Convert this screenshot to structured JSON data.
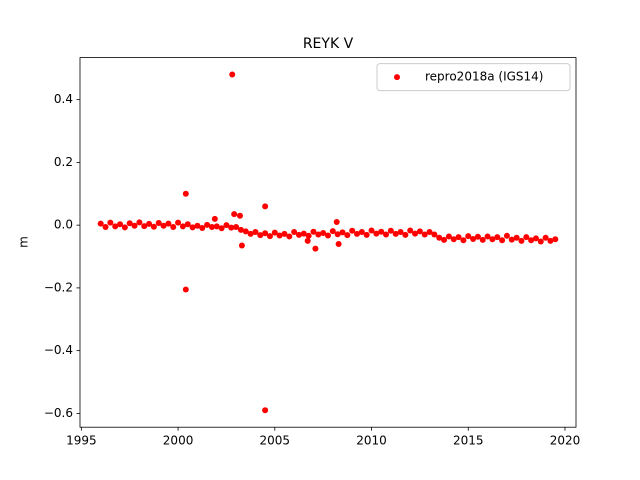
{
  "chart_data": {
    "type": "scatter",
    "title": "REYK V",
    "ylabel": "m",
    "xlim": [
      1994.93,
      2020.57
    ],
    "ylim": [
      -0.644,
      0.534
    ],
    "xticks": [
      1995,
      2000,
      2005,
      2010,
      2015,
      2020
    ],
    "yticks": [
      {
        "value": -0.6,
        "label": "−0.6"
      },
      {
        "value": -0.4,
        "label": "−0.4"
      },
      {
        "value": -0.2,
        "label": "−0.2"
      },
      {
        "value": 0,
        "label": "0.0"
      },
      0.2,
      0.4
    ],
    "legend": "upper right",
    "series": [
      {
        "name": "repro2018a (IGS14)",
        "color": "#ff0000",
        "x": [
          1996.0,
          1996.25,
          1996.5,
          1996.75,
          1997.0,
          1997.25,
          1997.5,
          1997.75,
          1998.0,
          1998.25,
          1998.5,
          1998.75,
          1999.0,
          1999.25,
          1999.5,
          1999.75,
          2000.0,
          2000.25,
          2000.5,
          2000.75,
          2001.0,
          2001.25,
          2001.5,
          2001.75,
          2002.0,
          2002.25,
          2002.5,
          2002.75,
          2003.0,
          2003.25,
          2003.5,
          2003.75,
          2004.0,
          2004.25,
          2004.5,
          2004.75,
          2005.0,
          2005.25,
          2005.5,
          2005.75,
          2006.0,
          2006.25,
          2006.5,
          2006.75,
          2007.0,
          2007.25,
          2007.5,
          2007.75,
          2008.0,
          2008.25,
          2008.5,
          2008.75,
          2009.0,
          2009.25,
          2009.5,
          2009.75,
          2010.0,
          2010.25,
          2010.5,
          2010.75,
          2011.0,
          2011.25,
          2011.5,
          2011.75,
          2012.0,
          2012.25,
          2012.5,
          2012.75,
          2013.0,
          2013.25,
          2013.5,
          2013.75,
          2014.0,
          2014.25,
          2014.5,
          2014.75,
          2015.0,
          2015.25,
          2015.5,
          2015.75,
          2016.0,
          2016.25,
          2016.5,
          2016.75,
          2017.0,
          2017.25,
          2017.5,
          2017.75,
          2018.0,
          2018.25,
          2018.5,
          2018.75,
          2019.0,
          2019.25,
          2019.5,
          2002.8,
          2000.4,
          2000.4,
          2004.5,
          2004.5,
          2002.9,
          2003.2,
          2003.3,
          2006.7,
          2007.1,
          2008.2,
          2008.3,
          2001.9
        ],
        "values": [
          0.005,
          -0.006,
          0.008,
          -0.004,
          0.003,
          -0.007,
          0.006,
          -0.002,
          0.009,
          -0.003,
          0.004,
          -0.005,
          0.007,
          -0.002,
          0.005,
          -0.006,
          0.008,
          -0.004,
          0.003,
          -0.007,
          -0.002,
          -0.009,
          0.001,
          -0.006,
          -0.004,
          -0.01,
          0.0,
          -0.008,
          -0.006,
          -0.015,
          -0.02,
          -0.028,
          -0.022,
          -0.032,
          -0.026,
          -0.035,
          -0.024,
          -0.033,
          -0.028,
          -0.036,
          -0.022,
          -0.031,
          -0.027,
          -0.034,
          -0.021,
          -0.03,
          -0.025,
          -0.033,
          -0.019,
          -0.029,
          -0.023,
          -0.032,
          -0.018,
          -0.028,
          -0.022,
          -0.031,
          -0.017,
          -0.027,
          -0.021,
          -0.03,
          -0.018,
          -0.028,
          -0.022,
          -0.031,
          -0.017,
          -0.027,
          -0.02,
          -0.03,
          -0.022,
          -0.03,
          -0.04,
          -0.047,
          -0.036,
          -0.045,
          -0.038,
          -0.048,
          -0.035,
          -0.044,
          -0.037,
          -0.047,
          -0.036,
          -0.045,
          -0.038,
          -0.048,
          -0.034,
          -0.046,
          -0.04,
          -0.05,
          -0.038,
          -0.048,
          -0.042,
          -0.052,
          -0.04,
          -0.05,
          -0.045,
          0.48,
          0.1,
          -0.205,
          -0.59,
          0.06,
          0.035,
          0.03,
          -0.065,
          -0.05,
          -0.075,
          0.01,
          -0.06,
          0.02
        ]
      }
    ]
  }
}
